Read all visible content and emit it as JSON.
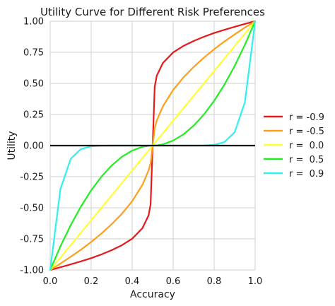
{
  "chart_data": {
    "type": "line",
    "title": "Utility Curve for Different Risk Preferences",
    "xlabel": "Accuracy",
    "ylabel": "Utility",
    "xlim": [
      0.0,
      1.0
    ],
    "ylim": [
      -1.0,
      1.0
    ],
    "xticks": [
      "0.0",
      "0.2",
      "0.4",
      "0.6",
      "0.8",
      "1.0"
    ],
    "yticks": [
      "1.00",
      "0.75",
      "0.50",
      "0.25",
      "0.00",
      "-0.25",
      "-0.50",
      "-0.75",
      "-1.00"
    ],
    "grid": true,
    "legend_position": "right",
    "x": [
      0.0,
      0.05,
      0.1,
      0.15,
      0.2,
      0.25,
      0.3,
      0.35,
      0.4,
      0.45,
      0.48,
      0.49,
      0.5,
      0.51,
      0.52,
      0.55,
      0.6,
      0.65,
      0.7,
      0.75,
      0.8,
      0.85,
      0.9,
      0.95,
      1.0
    ],
    "series": [
      {
        "name": "r = -0.9",
        "color": "#e31a1c",
        "values": [
          -1.0,
          -0.978,
          -0.955,
          -0.931,
          -0.905,
          -0.875,
          -0.841,
          -0.801,
          -0.749,
          -0.664,
          -0.562,
          -0.472,
          0.0,
          0.472,
          0.562,
          0.664,
          0.749,
          0.801,
          0.841,
          0.875,
          0.905,
          0.931,
          0.955,
          0.978,
          1.0
        ]
      },
      {
        "name": "r = -0.5",
        "color": "#ff9f1a",
        "values": [
          -1.0,
          -0.949,
          -0.894,
          -0.837,
          -0.775,
          -0.707,
          -0.632,
          -0.548,
          -0.447,
          -0.316,
          -0.2,
          -0.141,
          0.0,
          0.141,
          0.2,
          0.316,
          0.447,
          0.548,
          0.632,
          0.707,
          0.775,
          0.837,
          0.894,
          0.949,
          1.0
        ]
      },
      {
        "name": "r =  0.0",
        "color": "#ffff33",
        "values": [
          -1.0,
          -0.9,
          -0.8,
          -0.7,
          -0.6,
          -0.5,
          -0.4,
          -0.3,
          -0.2,
          -0.1,
          -0.04,
          -0.02,
          0.0,
          0.02,
          0.04,
          0.1,
          0.2,
          0.3,
          0.4,
          0.5,
          0.6,
          0.7,
          0.8,
          0.9,
          1.0
        ]
      },
      {
        "name": "r =  0.5",
        "color": "#22ee22",
        "values": [
          -1.0,
          -0.81,
          -0.64,
          -0.49,
          -0.36,
          -0.25,
          -0.16,
          -0.09,
          -0.04,
          -0.01,
          -0.002,
          -0.0004,
          0.0,
          0.0004,
          0.002,
          0.01,
          0.04,
          0.09,
          0.16,
          0.25,
          0.36,
          0.49,
          0.64,
          0.81,
          1.0
        ]
      },
      {
        "name": "r =  0.9",
        "color": "#33f0f0",
        "values": [
          -1.0,
          -0.349,
          -0.107,
          -0.028,
          -0.006,
          -0.001,
          0.0,
          0.0,
          0.0,
          0.0,
          0.0,
          0.0,
          0.0,
          0.0,
          0.0,
          0.0,
          0.0,
          0.0,
          0.0,
          0.001,
          0.006,
          0.028,
          0.107,
          0.349,
          1.0
        ]
      }
    ],
    "reference_line": {
      "y": 0.0,
      "color": "#000000"
    }
  }
}
